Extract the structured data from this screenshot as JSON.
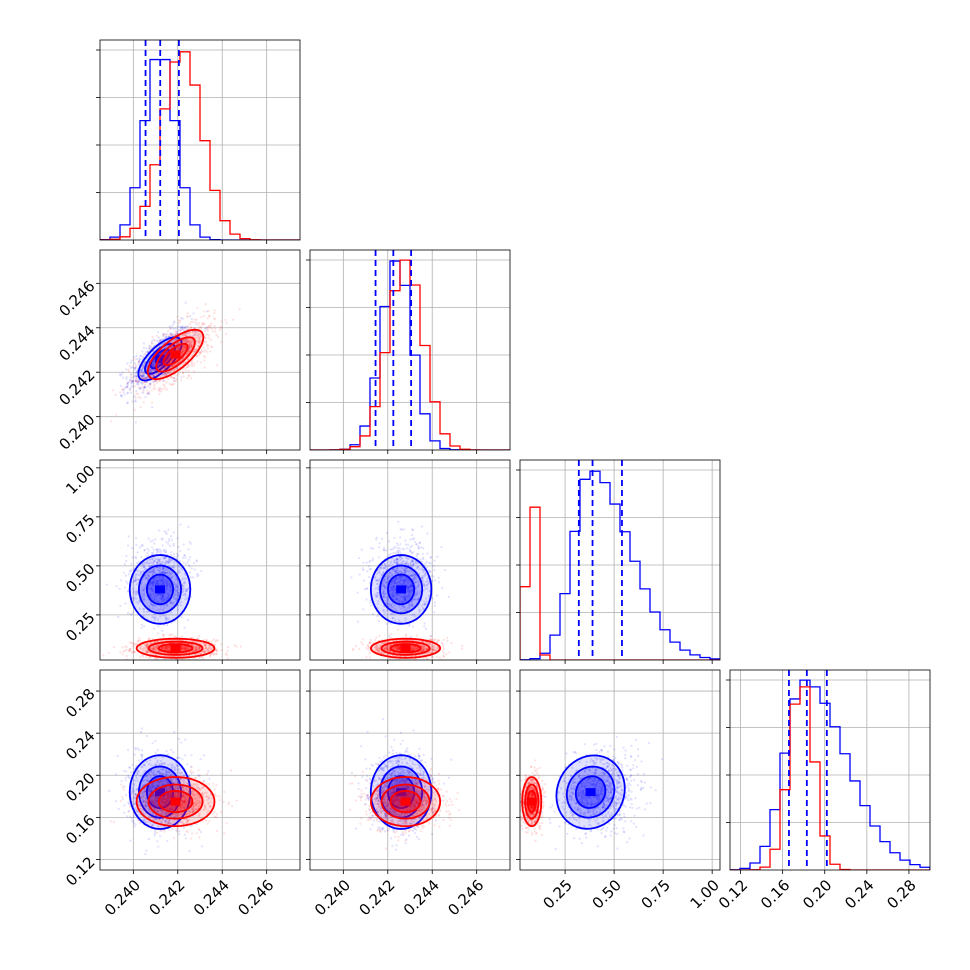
{
  "chart_data": {
    "type": "corner",
    "grid": true,
    "colors": {
      "series_a": "#0000ff",
      "series_b": "#ff0000"
    },
    "parameters": [
      {
        "range": [
          0.2385,
          0.2475
        ],
        "ticks": [
          0.24,
          0.242,
          0.244,
          0.246
        ],
        "tick_labels": [
          "0.240",
          "0.242",
          "0.244",
          "0.246"
        ]
      },
      {
        "range": [
          0.2385,
          0.2475
        ],
        "ticks": [
          0.24,
          0.242,
          0.244,
          0.246
        ],
        "tick_labels": [
          "0.240",
          "0.242",
          "0.244",
          "0.246"
        ]
      },
      {
        "range": [
          0.02,
          1.04
        ],
        "ticks": [
          0.25,
          0.5,
          0.75,
          1.0
        ],
        "tick_labels": [
          "0.25",
          "0.50",
          "0.75",
          "1.00"
        ]
      },
      {
        "range": [
          0.11,
          0.3
        ],
        "ticks": [
          0.12,
          0.16,
          0.2,
          0.24,
          0.28
        ],
        "tick_labels": [
          "0.12",
          "0.16",
          "0.20",
          "0.24",
          "0.28"
        ]
      }
    ],
    "series": [
      {
        "name": "",
        "color": "#0000ff",
        "means": [
          0.2412,
          0.2426,
          0.38,
          0.184
        ],
        "sds": [
          0.0007,
          0.0007,
          0.09,
          0.018
        ],
        "correlations": [
          [
            0,
            1,
            0.7
          ],
          [
            2,
            3,
            0.1
          ],
          [
            0,
            2,
            0.0
          ],
          [
            1,
            2,
            0.0
          ]
        ],
        "quantiles_16_50_84": [
          [
            0.24055,
            0.24121,
            0.24205
          ],
          [
            0.24145,
            0.24225,
            0.24305
          ],
          [
            0.32,
            0.39,
            0.54
          ],
          [
            0.166,
            0.183,
            0.202
          ]
        ],
        "hist_peaks": [
          0.2412,
          0.2424,
          0.38,
          0.18
        ]
      },
      {
        "name": "",
        "color": "#ff0000",
        "means": [
          0.2419,
          0.2428,
          0.08,
          0.175
        ],
        "sds": [
          0.0009,
          0.0008,
          0.025,
          0.012
        ],
        "correlations": [
          [
            0,
            1,
            0.7
          ]
        ],
        "hist_peaks": [
          0.2422,
          0.2428,
          0.08,
          0.178
        ]
      }
    ]
  }
}
